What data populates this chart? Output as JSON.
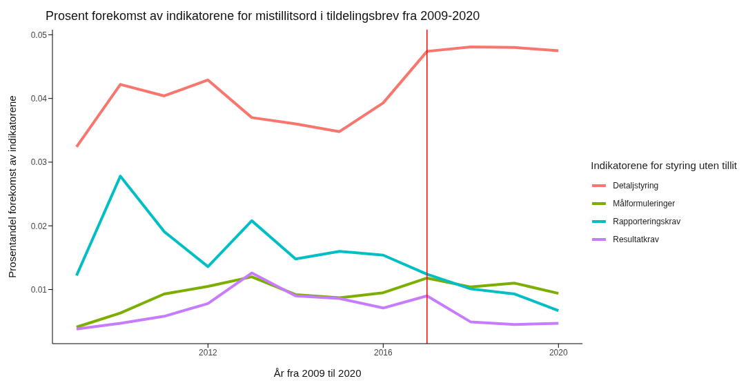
{
  "chart_data": {
    "type": "line",
    "title": "Prosent forekomst av indikatorene for mistillitsord i tildelingsbrev fra 2009-2020",
    "xlabel": "År fra 2009 til 2020",
    "ylabel": "Prosentandel forekomst av indikatorene",
    "legend_title": "Indikatorene for styring uten tillit",
    "x": [
      2009,
      2010,
      2011,
      2012,
      2013,
      2014,
      2015,
      2016,
      2017,
      2018,
      2019,
      2020
    ],
    "series": [
      {
        "name": "Detaljstyring",
        "color": "#f8766d",
        "values": [
          0.0324,
          0.0422,
          0.0404,
          0.0429,
          0.037,
          0.036,
          0.0348,
          0.0393,
          0.0474,
          0.0481,
          0.048,
          0.0475
        ]
      },
      {
        "name": "Målformuleringer",
        "color": "#7cae00",
        "values": [
          0.0041,
          0.0063,
          0.0093,
          0.0105,
          0.012,
          0.0092,
          0.0087,
          0.0095,
          0.0118,
          0.0104,
          0.011,
          0.0094
        ]
      },
      {
        "name": "Rapporteringskrav",
        "color": "#00bfc4",
        "values": [
          0.0122,
          0.0278,
          0.0191,
          0.0136,
          0.0208,
          0.0148,
          0.016,
          0.0154,
          0.0124,
          0.0101,
          0.0093,
          0.0067
        ]
      },
      {
        "name": "Resultatkrav",
        "color": "#c77cff",
        "values": [
          0.0038,
          0.0047,
          0.0058,
          0.0078,
          0.0126,
          0.009,
          0.0086,
          0.0071,
          0.009,
          0.0049,
          0.0045,
          0.0047
        ]
      }
    ],
    "xlim": [
      2008.45,
      2020.55
    ],
    "xticks": [
      2012,
      2016,
      2020
    ],
    "ylim": [
      0.0015,
      0.0508
    ],
    "yticks": [
      0.01,
      0.02,
      0.03,
      0.04,
      0.05
    ],
    "ref_lines": [
      {
        "axis": "x",
        "value": 2017,
        "color": "#ff0000"
      }
    ],
    "grid": false,
    "legend": "right",
    "line_style": "solid"
  }
}
